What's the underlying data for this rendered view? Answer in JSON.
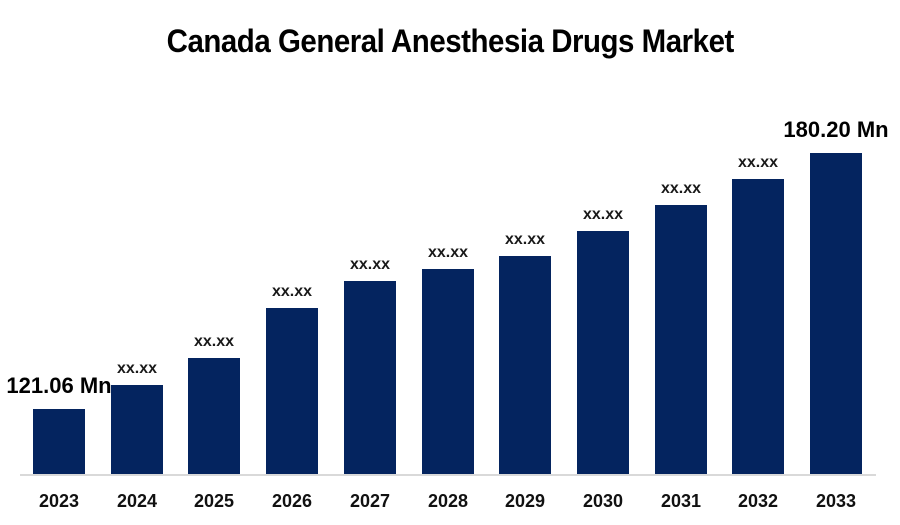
{
  "chart_data": {
    "type": "bar",
    "title": "Canada General Anesthesia Drugs Market",
    "categories": [
      "2023",
      "2024",
      "2025",
      "2026",
      "2027",
      "2028",
      "2029",
      "2030",
      "2031",
      "2032",
      "2033"
    ],
    "values": [
      121.06,
      126.6,
      132.8,
      144.4,
      150.6,
      153.4,
      156.4,
      162.2,
      168.2,
      174.2,
      180.2
    ],
    "value_labels": [
      "121.06 Mn",
      "xx.xx",
      "xx.xx",
      "xx.xx",
      "xx.xx",
      "xx.xx",
      "xx.xx",
      "xx.xx",
      "xx.xx",
      "xx.xx",
      "180.20 Mn"
    ],
    "unit": "Mn",
    "masked_label": "xx.xx",
    "first_value_label": "121.06 Mn",
    "last_value_label": "180.20 Mn",
    "xlabel": "",
    "ylabel": "",
    "y_axis_visible": false,
    "grid": false,
    "legend": "none",
    "ylim": [
      106.04,
      192.4
    ],
    "values_note": "intermediate bars are masked as xx.xx on the chart; their numeric values are estimated from bar heights"
  },
  "colors": {
    "bar": "#04245f",
    "axis_line": "#d9d9d9",
    "title_text": "#000000",
    "label_text": "#1a1a1a"
  }
}
